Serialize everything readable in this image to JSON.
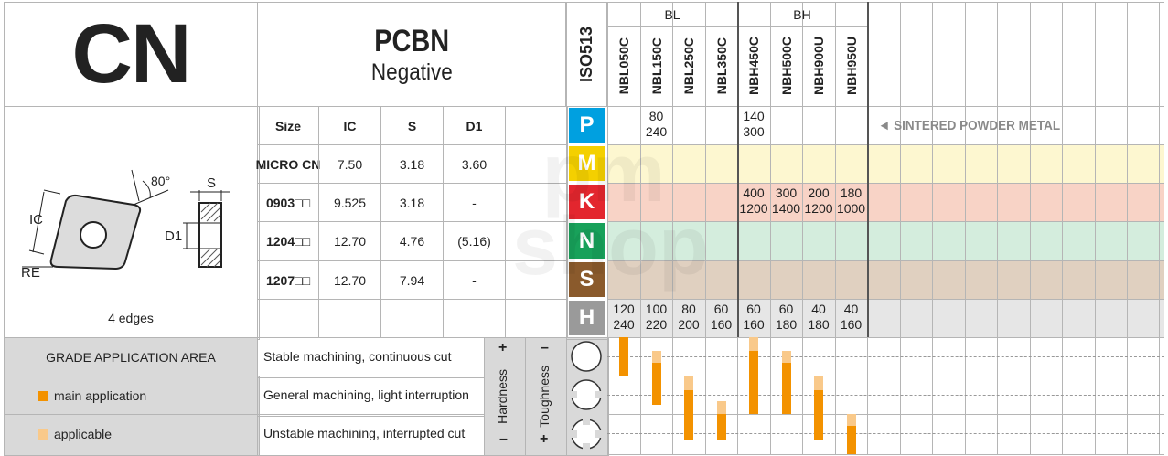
{
  "header": {
    "title": "CN",
    "material": "PCBN",
    "type": "Negative"
  },
  "insert": {
    "angle_label": "80°",
    "ic_label": "IC",
    "re_label": "RE",
    "s_label": "S",
    "d1_label": "D1",
    "edges": "4 edges"
  },
  "dims": {
    "headers": [
      "Size",
      "IC",
      "S",
      "D1"
    ],
    "rows": [
      [
        "MICRO CN",
        "7.50",
        "3.18",
        "3.60"
      ],
      [
        "0903□□",
        "9.525",
        "3.18",
        "-"
      ],
      [
        "1204□□",
        "12.70",
        "4.76",
        "(5.16)"
      ],
      [
        "1207□□",
        "12.70",
        "7.94",
        "-"
      ]
    ]
  },
  "iso_label": "ISO513",
  "iso": [
    {
      "letter": "P",
      "color": "#00a0e0",
      "row_bg": "#ffffff"
    },
    {
      "letter": "M",
      "color": "#f4d000",
      "row_bg": "#fdf7d0"
    },
    {
      "letter": "K",
      "color": "#e3262e",
      "row_bg": "#f8d3c6"
    },
    {
      "letter": "N",
      "color": "#18a15a",
      "row_bg": "#d4eddd"
    },
    {
      "letter": "S",
      "color": "#8a5a2c",
      "row_bg": "#e0d0c0"
    },
    {
      "letter": "H",
      "color": "#9a9a9a",
      "row_bg": "#e6e6e6"
    }
  ],
  "groups": [
    {
      "label": "BL"
    },
    {
      "label": "BH"
    }
  ],
  "grades": [
    "NBL050C",
    "NBL150C",
    "NBL250C",
    "NBL350C",
    "NBH450C",
    "NBH500C",
    "NBH900U",
    "NBH950U"
  ],
  "speeds": {
    "P": [
      [
        "",
        ""
      ],
      [
        "80",
        "240"
      ],
      [
        "",
        ""
      ],
      [
        "",
        ""
      ],
      [
        "140",
        "300"
      ],
      [
        "",
        ""
      ],
      [
        "",
        ""
      ],
      [
        "",
        ""
      ]
    ],
    "K": [
      [
        "",
        ""
      ],
      [
        "",
        ""
      ],
      [
        "",
        ""
      ],
      [
        "",
        ""
      ],
      [
        "400",
        "1200"
      ],
      [
        "300",
        "1400"
      ],
      [
        "200",
        "1200"
      ],
      [
        "180",
        "1000"
      ]
    ],
    "H": [
      [
        "120",
        "240"
      ],
      [
        "100",
        "220"
      ],
      [
        "80",
        "200"
      ],
      [
        "60",
        "160"
      ],
      [
        "60",
        "160"
      ],
      [
        "60",
        "180"
      ],
      [
        "40",
        "180"
      ],
      [
        "40",
        "160"
      ]
    ]
  },
  "sintered_note": "◄ SINTERED POWDER METAL",
  "application": {
    "title": "GRADE APPLICATION AREA",
    "main": "main application",
    "applicable": "applicable",
    "conditions": [
      "Stable machining, continuous cut",
      "General machining, light interruption",
      "Unstable machining, interrupted cut"
    ],
    "hardness": "Hardness",
    "toughness": "Toughness",
    "plus": "+",
    "minus": "–",
    "main_color": "#f39200",
    "applicable_color": "#f9c98a"
  },
  "watermark": "pm shop"
}
